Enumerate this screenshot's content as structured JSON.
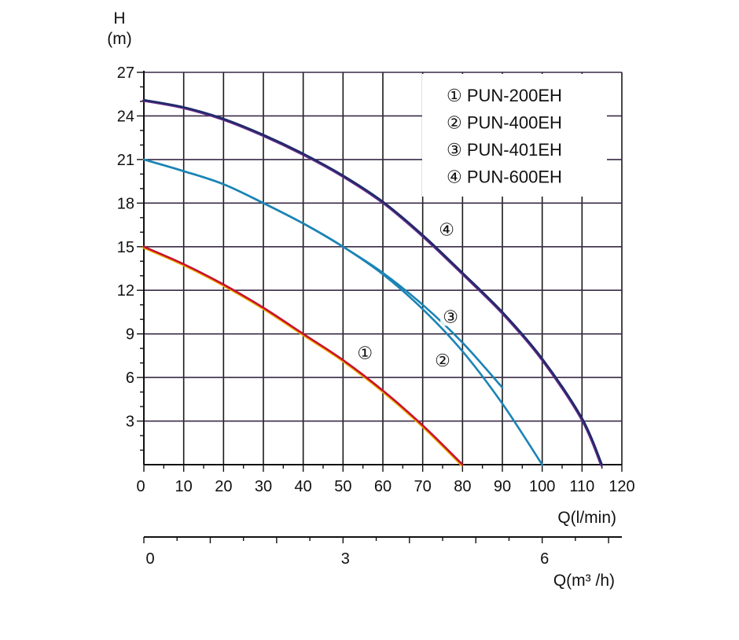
{
  "chart_data": {
    "type": "line",
    "ylabel_line1": "H",
    "ylabel_line2": "(m)",
    "xlabel": "Q(l/min)",
    "x2label": "Q(m³ /h)",
    "xlim": [
      0,
      120
    ],
    "ylim": [
      0,
      27
    ],
    "x_ticks": [
      0,
      10,
      20,
      30,
      40,
      50,
      60,
      70,
      80,
      90,
      100,
      110,
      120
    ],
    "y_ticks": [
      3,
      6,
      9,
      12,
      15,
      18,
      21,
      24,
      27
    ],
    "x2_ticks": [
      0,
      3,
      6
    ],
    "grid": true,
    "legend_position": "top-right",
    "legend": [
      {
        "marker": "①",
        "label": "PUN-200EH"
      },
      {
        "marker": "②",
        "label": "PUN-400EH"
      },
      {
        "marker": "③",
        "label": "PUN-401EH"
      },
      {
        "marker": "④",
        "label": "PUN-600EH"
      }
    ],
    "series": [
      {
        "marker": "①",
        "color": "#c8102e",
        "color2": "#f0b400",
        "x": [
          0,
          10,
          20,
          30,
          40,
          50,
          60,
          70,
          80
        ],
        "y": [
          15,
          13.8,
          12.4,
          10.8,
          9.0,
          7.2,
          5.1,
          2.7,
          0
        ]
      },
      {
        "marker": "②",
        "color": "#1b84b5",
        "x": [
          0,
          10,
          20,
          30,
          40,
          50,
          60,
          70,
          80,
          90,
          100
        ],
        "y": [
          21,
          20.2,
          19.3,
          18.0,
          16.6,
          15.0,
          13.1,
          10.7,
          7.8,
          4.2,
          0
        ]
      },
      {
        "marker": "③",
        "color": "#1b84b5",
        "x": [
          0,
          10,
          20,
          30,
          40,
          50,
          60,
          70,
          80,
          90
        ],
        "y": [
          21,
          20.2,
          19.3,
          18.0,
          16.6,
          15.0,
          13.2,
          11.0,
          8.4,
          5.3
        ]
      },
      {
        "marker": "④",
        "color": "#1f2a6a",
        "color2": "#6a2a8a",
        "x": [
          0,
          10,
          20,
          30,
          40,
          50,
          60,
          70,
          80,
          90,
          100,
          110,
          115
        ],
        "y": [
          25.1,
          24.6,
          23.8,
          22.7,
          21.4,
          19.9,
          18.1,
          15.8,
          13.2,
          10.5,
          7.3,
          3.2,
          0
        ]
      }
    ],
    "curve_labels": [
      {
        "marker": "④",
        "x": 76,
        "y": 16.2
      },
      {
        "marker": "③",
        "x": 77,
        "y": 10.2
      },
      {
        "marker": "②",
        "x": 75,
        "y": 7.2
      },
      {
        "marker": "①",
        "x": 55.5,
        "y": 7.7
      }
    ]
  }
}
